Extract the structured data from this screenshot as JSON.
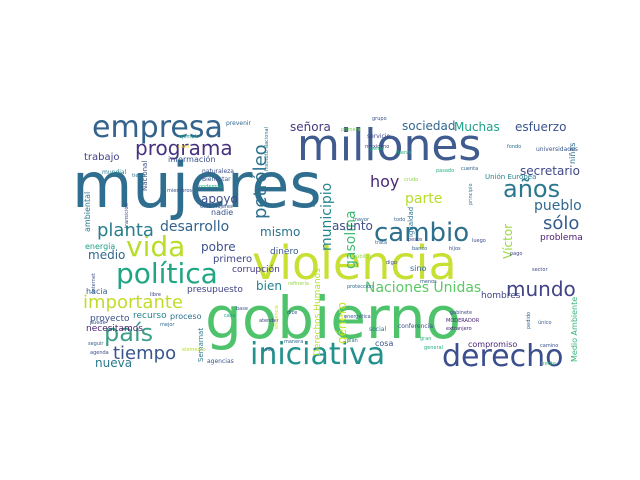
{
  "words": [
    {
      "text": "mujeres",
      "color": "#2f6e8e"
    },
    {
      "text": "gobierno",
      "color": "#4ec36b"
    },
    {
      "text": "violencia",
      "color": "#c8df34"
    },
    {
      "text": "millones",
      "color": "#3f5b8f"
    },
    {
      "text": "iniciativa",
      "color": "#23918c"
    },
    {
      "text": "derecho",
      "color": "#3b4e8d"
    },
    {
      "text": "empresa",
      "color": "#33638d"
    },
    {
      "text": "política",
      "color": "#21a685"
    },
    {
      "text": "país",
      "color": "#3d9f8a"
    },
    {
      "text": "vida",
      "color": "#b8de29"
    },
    {
      "text": "cambio",
      "color": "#2e6f8e"
    },
    {
      "text": "años",
      "color": "#2a788e"
    },
    {
      "text": "programa",
      "color": "#46327e"
    },
    {
      "text": "tiempo",
      "color": "#39568c"
    },
    {
      "text": "importante",
      "color": "#c3dc2a"
    },
    {
      "text": "mundo",
      "color": "#414487"
    },
    {
      "text": "Naciones Unidas",
      "color": "#5ac864"
    },
    {
      "text": "planta",
      "color": "#287d8e"
    },
    {
      "text": "petróleo",
      "color": "#2c728e"
    },
    {
      "text": "desarrollo",
      "color": "#33638d"
    },
    {
      "text": "sólo",
      "color": "#365c8d"
    },
    {
      "text": "gasolina",
      "color": "#3fbc73"
    },
    {
      "text": "municipio",
      "color": "#24868e"
    },
    {
      "text": "hoy",
      "color": "#482878"
    },
    {
      "text": "parte",
      "color": "#b5de2b"
    },
    {
      "text": "pueblo",
      "color": "#31688e"
    },
    {
      "text": "señora",
      "color": "#443a83"
    },
    {
      "text": "sociedad",
      "color": "#31678e"
    },
    {
      "text": "Muchas",
      "color": "#1fa088"
    },
    {
      "text": "esfuerzo",
      "color": "#3b528b"
    },
    {
      "text": "secretario",
      "color": "#3e4989"
    },
    {
      "text": "Víctor",
      "color": "#9bd93c"
    },
    {
      "text": "asunto",
      "color": "#3e4c8a"
    },
    {
      "text": "apoyo",
      "color": "#3d4d8a"
    },
    {
      "text": "mismo",
      "color": "#2c728e"
    },
    {
      "text": "pobre",
      "color": "#3b528b"
    },
    {
      "text": "bien",
      "color": "#26828e"
    },
    {
      "text": "nueva",
      "color": "#2a788e"
    },
    {
      "text": "medio",
      "color": "#31678e"
    },
    {
      "text": "trabajo",
      "color": "#424086"
    },
    {
      "text": "información",
      "color": "#3a538b"
    },
    {
      "text": "género",
      "color": "#cbe11e"
    },
    {
      "text": "Derechos Humanos",
      "color": "#b5de2b"
    },
    {
      "text": "energía",
      "color": "#1fa187"
    },
    {
      "text": "primero",
      "color": "#3f4788"
    },
    {
      "text": "corrupción",
      "color": "#443983"
    },
    {
      "text": "dinero",
      "color": "#38598c"
    },
    {
      "text": "recurso",
      "color": "#25858e"
    },
    {
      "text": "presupuesto",
      "color": "#414487"
    },
    {
      "text": "proceso",
      "color": "#2d708e"
    },
    {
      "text": "proyecto",
      "color": "#3b518b"
    },
    {
      "text": "necesitamos",
      "color": "#481f70"
    },
    {
      "text": "hacia",
      "color": "#34608d"
    },
    {
      "text": "nadie",
      "color": "#3a548c"
    },
    {
      "text": "hombres",
      "color": "#404588"
    },
    {
      "text": "sino",
      "color": "#31688e"
    },
    {
      "text": "cosa",
      "color": "#3a538b"
    },
    {
      "text": "compromiso",
      "color": "#482475"
    },
    {
      "text": "problema",
      "color": "#481b6d"
    },
    {
      "text": "Medio Ambiente",
      "color": "#34b679"
    },
    {
      "text": "niñas",
      "color": "#2e6e8e"
    },
    {
      "text": "Unión Europea",
      "color": "#25838e"
    },
    {
      "text": "ambiental",
      "color": "#2a788e"
    },
    {
      "text": "Semarnat",
      "color": "#297a8e"
    },
    {
      "text": "Nacional",
      "color": "#3c4f8a"
    },
    {
      "text": "igualdad",
      "color": "#2c738e"
    },
    {
      "text": "conferencia",
      "color": "#3c4f8a"
    },
    {
      "text": "social",
      "color": "#2c728e"
    },
    {
      "text": "agencias",
      "color": "#3a548c"
    },
    {
      "text": "Bienestar",
      "color": "#39568c"
    },
    {
      "text": "naturaleza",
      "color": "#3c508b"
    },
    {
      "text": "prevenir",
      "color": "#31678e"
    },
    {
      "text": "servicio",
      "color": "#3f4889"
    },
    {
      "text": "mexicano",
      "color": "#424186"
    },
    {
      "text": "universidades",
      "color": "#38588c"
    },
    {
      "text": "mundial",
      "color": "#26818e"
    },
    {
      "text": "grupo",
      "color": "#3b528b"
    },
    {
      "text": "MODERADOR",
      "color": "#482173"
    },
    {
      "text": "extranjero",
      "color": "#482878"
    },
    {
      "text": "pasado",
      "color": "#29af7f"
    },
    {
      "text": "cuenta",
      "color": "#32658e"
    },
    {
      "text": "banco",
      "color": "#34618d"
    },
    {
      "text": "pesos",
      "color": "#3e4a89"
    },
    {
      "text": "trata",
      "color": "#306a8e"
    },
    {
      "text": "miembros",
      "color": "#3b528b"
    },
    {
      "text": "gente",
      "color": "#26ad81"
    },
    {
      "text": "protección",
      "color": "#31688e"
    },
    {
      "text": "menos",
      "color": "#37598c"
    },
    {
      "text": "gabinete",
      "color": "#3c4f8a"
    },
    {
      "text": "seguir",
      "color": "#34608d"
    },
    {
      "text": "agenda",
      "color": "#3e4c8a"
    },
    {
      "text": "libre",
      "color": "#404387"
    },
    {
      "text": "camino",
      "color": "#3b518b"
    },
    {
      "text": "pago",
      "color": "#3e4989"
    },
    {
      "text": "atender",
      "color": "#414487"
    },
    {
      "text": "base",
      "color": "#3a548c"
    },
    {
      "text": "crudo",
      "color": "#8fd744"
    },
    {
      "text": "plan",
      "color": "#2d708e"
    },
    {
      "text": "primera",
      "color": "#7ad151"
    },
    {
      "text": "OMS Mujeres",
      "color": "#3a548c"
    },
    {
      "text": "pedido",
      "color": "#32658e"
    },
    {
      "text": "ejemplo",
      "color": "#1f9a8a"
    },
    {
      "text": "Instituto Nacional",
      "color": "#2a788e"
    },
    {
      "text": "transición",
      "color": "#3f4788"
    },
    {
      "text": "manera",
      "color": "#2f6b8e"
    },
    {
      "text": "energética",
      "color": "#39568c"
    },
    {
      "text": "dice",
      "color": "#3b518b"
    },
    {
      "text": "podemos",
      "color": "#26ad81"
    },
    {
      "text": "general",
      "color": "#28ae80"
    },
    {
      "text": "refinería",
      "color": "#95d840"
    },
    {
      "text": "eficiencia",
      "color": "#cde11d"
    },
    {
      "text": "todo",
      "color": "#355f8d"
    },
    {
      "text": "digo",
      "color": "#3e4a89"
    },
    {
      "text": "principio",
      "color": "#2d718e"
    },
    {
      "text": "elemento",
      "color": "#b8de29"
    },
    {
      "text": "fondo",
      "color": "#2d708e"
    },
    {
      "text": "caso",
      "color": "#fde725"
    },
    {
      "text": "único",
      "color": "#38598c"
    },
    {
      "text": "mayor",
      "color": "#31688e"
    },
    {
      "text": "público",
      "color": "#95d840"
    },
    {
      "text": "hijos",
      "color": "#3b518b"
    },
    {
      "text": "fuerza",
      "color": "#28ae80"
    },
    {
      "text": "mejor",
      "color": "#306a8e"
    },
    {
      "text": "Internet",
      "color": "#3c4f8a"
    },
    {
      "text": "tierra",
      "color": "#2a788e"
    },
    {
      "text": "sector",
      "color": "#3d4d8a"
    },
    {
      "text": "gran",
      "color": "#2fb47c"
    },
    {
      "text": "puede",
      "color": "#3b518b"
    },
    {
      "text": "lado",
      "color": "#33638d"
    },
    {
      "text": "casa",
      "color": "#1fa188"
    },
    {
      "text": "mano",
      "color": "#2e6d8e"
    },
    {
      "text": "luego",
      "color": "#3e4989"
    },
    {
      "text": "frente",
      "color": "#35b779"
    },
    {
      "text": "orden",
      "color": "#3a548c"
    }
  ]
}
